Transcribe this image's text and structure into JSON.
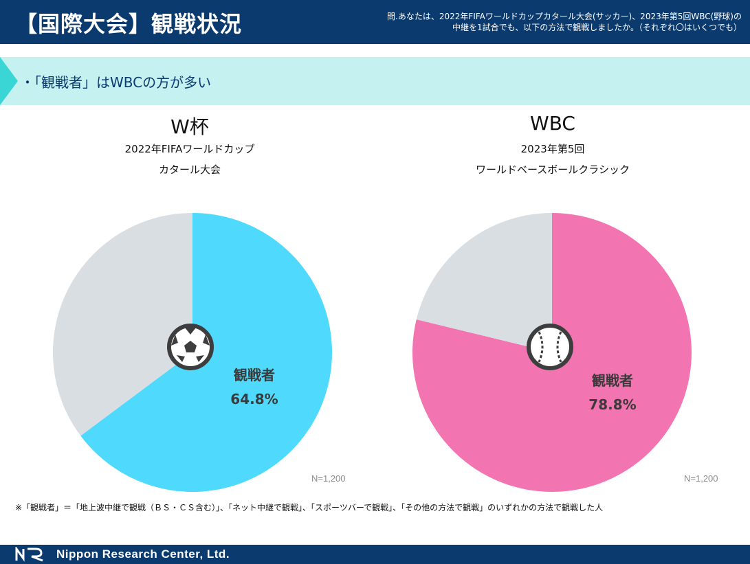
{
  "header": {
    "title": "【国際大会】観戦状況",
    "question": "問.あなたは、2022年FIFAワールドカップカタール大会(サッカー)、2023年第5回WBC(野球)の中継を1試合でも、以下の方法で観戦しましたか。（それぞれ〇はいくつでも）"
  },
  "band": {
    "text": "・「観戦者」はWBCの方が多い"
  },
  "chart_data": [
    {
      "type": "pie",
      "title": "W杯",
      "subtitle_lines": [
        "2022年FIFAワールドカップ",
        "カタール大会"
      ],
      "categories": [
        "観戦者",
        ""
      ],
      "values": [
        64.8,
        35.2
      ],
      "colors": [
        "#4fd9fd",
        "#d9dee3"
      ],
      "data_label": {
        "label": "観戦者",
        "value": "64.8%"
      },
      "n_label": "N=1,200",
      "icon": "soccer-ball-icon"
    },
    {
      "type": "pie",
      "title": "WBC",
      "subtitle_lines": [
        "2023年第5回",
        "ワールドベースボールクラシック"
      ],
      "categories": [
        "観戦者",
        ""
      ],
      "values": [
        78.8,
        21.2
      ],
      "colors": [
        "#f274b0",
        "#d9dee3"
      ],
      "data_label": {
        "label": "観戦者",
        "value": "78.8%"
      },
      "n_label": "N=1,200",
      "icon": "baseball-icon"
    }
  ],
  "footnote": "※「観戦者」＝「地上波中継で観戦（ＢＳ・ＣＳ含む）」、「ネット中継で観戦」、「スポーツバーで観戦」、「その他の方法で観戦」のいずれかの方法で観戦した人",
  "footer": {
    "company": "Nippon Research Center, Ltd.",
    "logo_text": "NR"
  }
}
